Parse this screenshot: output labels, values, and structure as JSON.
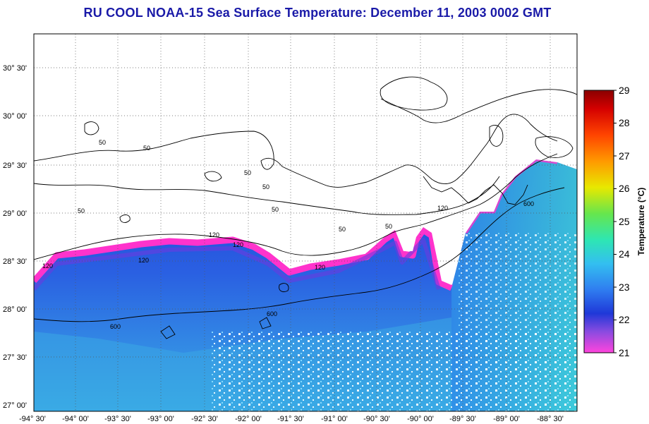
{
  "title": "RU COOL  NOAA-15  Sea Surface Temperature:  December 11, 2003 0002 GMT",
  "colors": {
    "title": "#1a1aa8",
    "land": "#ffffff",
    "coast_cold": "#ff33cc",
    "water_deep": "#1f3fd8",
    "water_mid": "#2e7be8",
    "water_light": "#3fb2e6"
  },
  "map": {
    "lon_labels": [
      "-94° 30'",
      "-94° 00'",
      "-93° 30'",
      "-93° 00'",
      "-92° 30'",
      "-92° 00'",
      "-91° 30'",
      "-91° 00'",
      "-90° 30'",
      "-90° 00'",
      "-89° 30'",
      "-89° 00'",
      "-88° 30'"
    ],
    "lat_labels": [
      "30° 30'",
      "30° 00'",
      "29° 30'",
      "29° 00'",
      "28° 30'",
      "28° 00'",
      "27° 30'",
      "27° 00'"
    ],
    "contour_labels": [
      "50",
      "50",
      "50",
      "50",
      "50",
      "50",
      "50",
      "50",
      "120",
      "120",
      "120",
      "120",
      "120",
      "120",
      "600",
      "600",
      "600"
    ]
  },
  "colorbar": {
    "title": "Temperature (°C)",
    "ticks": [
      "29",
      "28",
      "27",
      "26",
      "25",
      "24",
      "23",
      "22",
      "21"
    ]
  }
}
